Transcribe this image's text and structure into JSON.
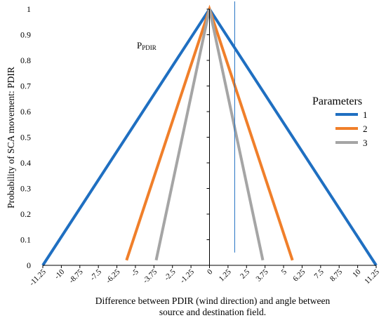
{
  "chart_data": {
    "type": "line",
    "ylabel": "Probability of SCA movement: PDIR",
    "xlabel_lines": [
      "Difference between PDIR (wind direction) and angle between",
      "source and destination field."
    ],
    "xlim": [
      -11.25,
      11.25
    ],
    "ylim": [
      0,
      1
    ],
    "x_ticks": [
      -11.25,
      -10,
      -8.75,
      -7.5,
      -6.25,
      -5,
      -3.75,
      -2.5,
      -1.25,
      0,
      1.25,
      2.5,
      3.75,
      5,
      6.25,
      7.5,
      8.75,
      10,
      11.25
    ],
    "x_tick_labels": [
      "-11.25",
      "-10",
      "-8.75",
      "-7.5",
      "-6.25",
      "-5",
      "-3.75",
      "-2.5",
      "-1.25",
      "0",
      "1.25",
      "2.5",
      "3.75",
      "5",
      "6.25",
      "7.5",
      "8.75",
      "10",
      "11.25"
    ],
    "y_ticks": [
      0,
      0.1,
      0.2,
      0.3,
      0.4,
      0.5,
      0.6,
      0.7,
      0.8,
      0.9,
      1
    ],
    "y_tick_labels": [
      "0",
      "0.1",
      "0.2",
      "0.3",
      "0.4",
      "0.5",
      "0.6",
      "0.7",
      "0.8",
      "0.9",
      "1"
    ],
    "grid": false,
    "legend": {
      "title": "Parameters",
      "position": "right"
    },
    "annotation": {
      "main": "P",
      "sub": "PDIR"
    },
    "series": [
      {
        "name": "1",
        "color": "#1f6fc1",
        "x": [
          -11.25,
          0,
          11.25
        ],
        "y": [
          0,
          1,
          0
        ]
      },
      {
        "name": "2",
        "color": "#f07f2a",
        "x": [
          -5.6,
          0,
          5.6
        ],
        "y": [
          0.02,
          1,
          0.02
        ]
      },
      {
        "name": "3",
        "color": "#a5a5a5",
        "x": [
          -3.6,
          0,
          3.6
        ],
        "y": [
          0.02,
          1,
          0.02
        ]
      }
    ],
    "reference_line": {
      "x": 1.7,
      "y": [
        0.05,
        1.03
      ],
      "color": "#1f6fc1"
    }
  }
}
